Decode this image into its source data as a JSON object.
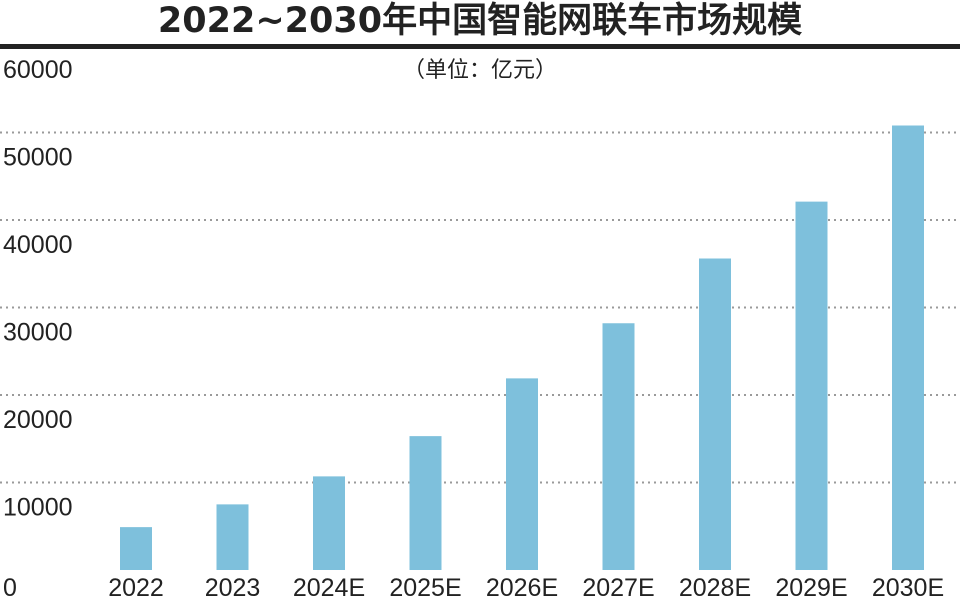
{
  "chart_data": {
    "type": "bar",
    "title": "2022~2030年中国智能网联车市场规模",
    "subtitle": "（单位：亿元）",
    "categories": [
      "2022",
      "2023",
      "2024E",
      "2025E",
      "2026E",
      "2027E",
      "2028E",
      "2029E",
      "2030E"
    ],
    "values": [
      4900,
      7500,
      10700,
      15300,
      21900,
      28200,
      35600,
      42100,
      50800
    ],
    "ylim": [
      0,
      60000
    ],
    "yticks": [
      "0",
      "10000",
      "20000",
      "30000",
      "40000",
      "50000",
      "60000"
    ],
    "grid": true,
    "bar_color": "#7ec0dc",
    "grid_color": "#9a9a9a"
  }
}
